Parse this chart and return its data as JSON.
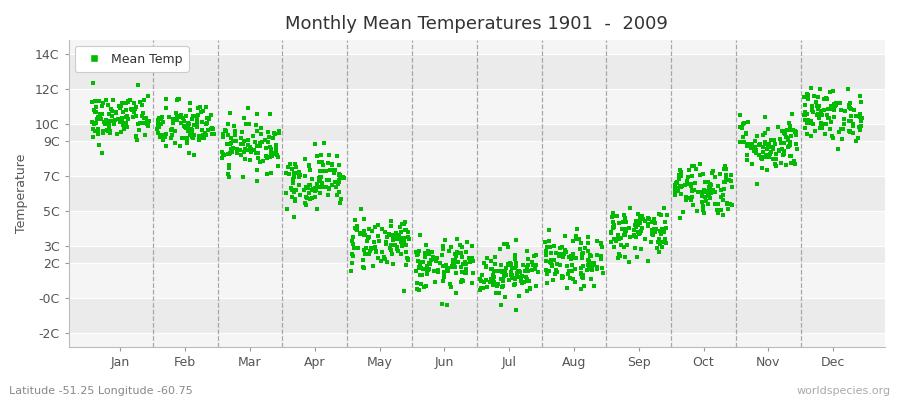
{
  "title": "Monthly Mean Temperatures 1901  -  2009",
  "ylabel": "Temperature",
  "subtitle_left": "Latitude -51.25 Longitude -60.75",
  "subtitle_right": "worldspecies.org",
  "legend_label": "Mean Temp",
  "marker_color": "#00BB00",
  "fig_bg_color": "#FFFFFF",
  "plot_bg_color": "#F2F2F2",
  "band_colors": [
    "#EBEBEB",
    "#F5F5F5"
  ],
  "dashed_line_color": "#888888",
  "months": [
    "Jan",
    "Feb",
    "Mar",
    "Apr",
    "May",
    "Jun",
    "Jul",
    "Aug",
    "Sep",
    "Oct",
    "Nov",
    "Dec"
  ],
  "month_means": [
    10.3,
    9.8,
    8.8,
    6.8,
    3.2,
    1.8,
    1.5,
    2.0,
    3.8,
    6.3,
    8.8,
    10.5
  ],
  "month_stds": [
    0.75,
    0.75,
    0.75,
    0.8,
    0.8,
    0.75,
    0.75,
    0.75,
    0.75,
    0.8,
    0.8,
    0.75
  ],
  "n_years": 109,
  "random_seed": 42,
  "ytick_vals": [
    -2,
    0,
    2,
    3,
    5,
    7,
    9,
    10,
    12,
    14
  ],
  "ytick_labels": [
    "-2C",
    "-0C",
    "2C",
    "3C",
    "5C",
    "7C",
    "9C",
    "10C",
    "12C",
    "14C"
  ],
  "ylim": [
    -2.8,
    14.8
  ],
  "xlim": [
    -0.3,
    12.3
  ]
}
